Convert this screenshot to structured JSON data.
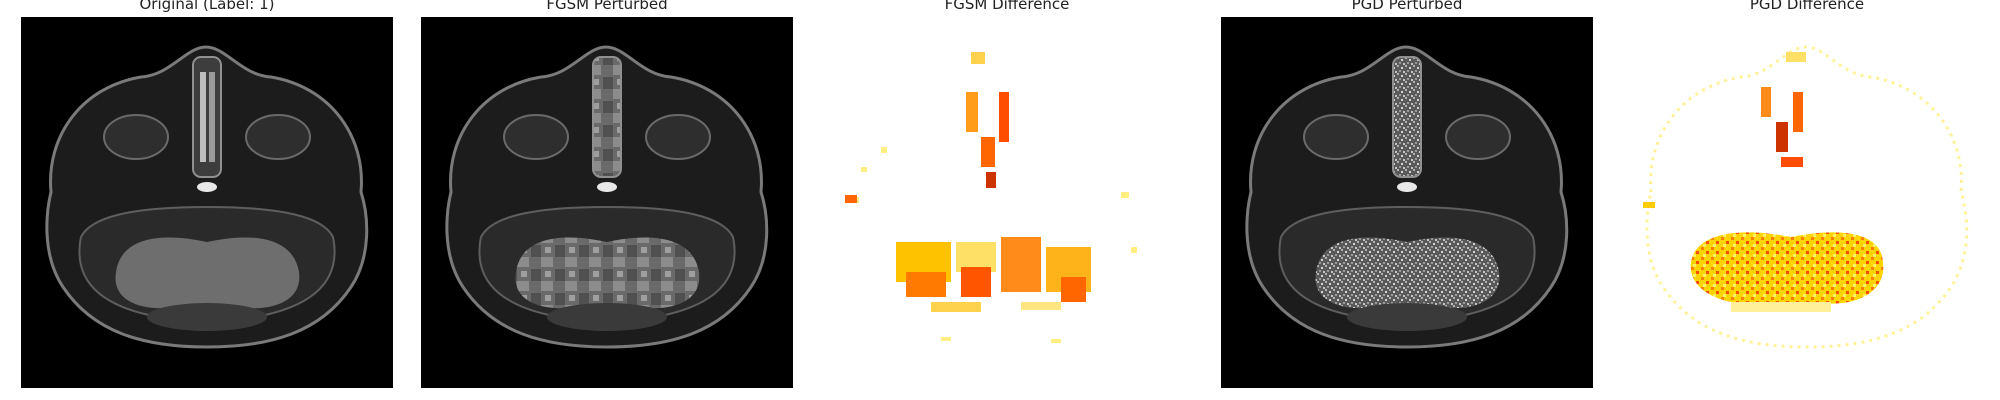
{
  "figure": {
    "panels": [
      {
        "title": "Original (Label: 1)",
        "kind": "mri",
        "texture": "smooth"
      },
      {
        "title": "FGSM Perturbed",
        "kind": "mri",
        "texture": "patchy"
      },
      {
        "title": "FGSM Difference",
        "kind": "difference",
        "colormap": "hot"
      },
      {
        "title": "PGD Perturbed",
        "kind": "mri",
        "texture": "noisy"
      },
      {
        "title": "PGD Difference",
        "kind": "difference",
        "colormap": "hot"
      }
    ]
  },
  "colors": {
    "background": "#ffffff",
    "title_text": "#222222",
    "mri_background": "#000000",
    "mri_tissue": "#6e6e6e",
    "hot_low": "#ffff66",
    "hot_mid": "#ff9900",
    "hot_high": "#ff3300"
  }
}
